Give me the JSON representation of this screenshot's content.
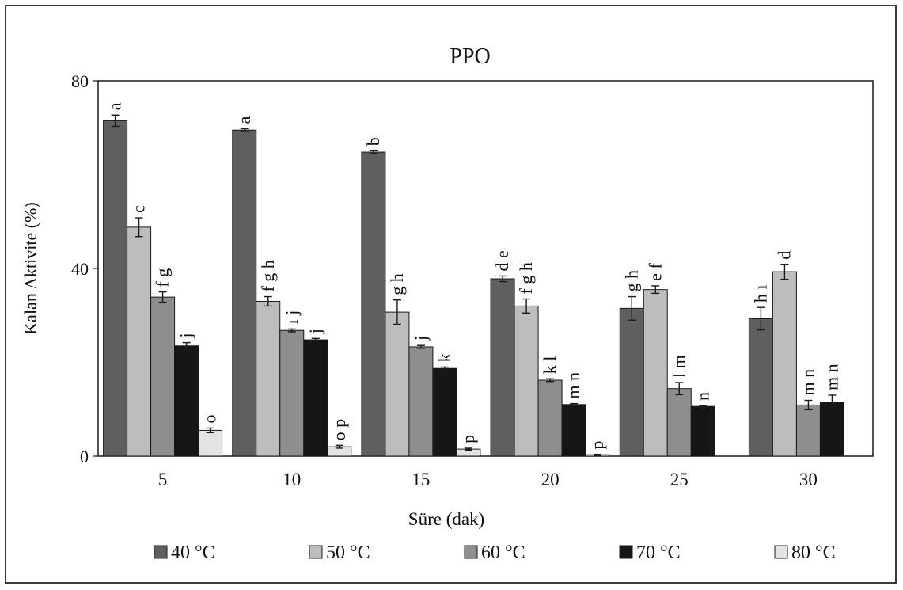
{
  "chart_data": {
    "type": "bar",
    "title": "PPO",
    "xlabel": "Süre (dak)",
    "ylabel": "Kalan Aktivite (%)",
    "ylim": [
      0,
      80
    ],
    "yticks": [
      "0",
      "40",
      "80"
    ],
    "categories": [
      "5",
      "10",
      "15",
      "20",
      "25",
      "30"
    ],
    "legend_position": "bottom",
    "grid": false,
    "series": [
      {
        "name": "40 °C",
        "color": "#5f5f5f",
        "values": [
          71.5,
          69.5,
          64.8,
          37.8,
          31.5,
          29.3
        ],
        "errors": [
          1.2,
          0.3,
          0.3,
          0.6,
          2.5,
          2.4
        ],
        "labels": [
          "a",
          "a",
          "b",
          "d e",
          "g h",
          "h ı"
        ]
      },
      {
        "name": "50 °C",
        "color": "#bdbdbd",
        "values": [
          48.8,
          33.0,
          30.7,
          32.0,
          35.5,
          39.3
        ],
        "errors": [
          2.0,
          1.0,
          2.6,
          1.5,
          0.8,
          1.6
        ],
        "labels": [
          "c",
          "f g h",
          "g h",
          "f g h",
          "e f",
          "d"
        ]
      },
      {
        "name": "60 °C",
        "color": "#8e8e8e",
        "values": [
          33.9,
          26.8,
          23.3,
          16.2,
          14.4,
          10.9
        ],
        "errors": [
          1.1,
          0.3,
          0.3,
          0.3,
          1.3,
          1.0
        ],
        "labels": [
          "f g",
          "ı j",
          "j",
          "k l",
          "l m",
          "m n"
        ]
      },
      {
        "name": "70 °C",
        "color": "#161616",
        "values": [
          23.5,
          24.8,
          18.7,
          11.0,
          10.6,
          11.5
        ],
        "errors": [
          0.7,
          0.3,
          0.3,
          0.2,
          0.2,
          1.5
        ],
        "labels": [
          "j",
          "j",
          "k",
          "m n",
          "n",
          "m n"
        ]
      },
      {
        "name": "80 °C",
        "color": "#e3e3e3",
        "values": [
          5.5,
          2.0,
          1.5,
          0.3,
          0,
          0
        ],
        "errors": [
          0.5,
          0.3,
          0.2,
          0.1,
          0,
          0
        ],
        "labels": [
          "o",
          "o p",
          "p",
          "p",
          "",
          ""
        ]
      }
    ]
  }
}
